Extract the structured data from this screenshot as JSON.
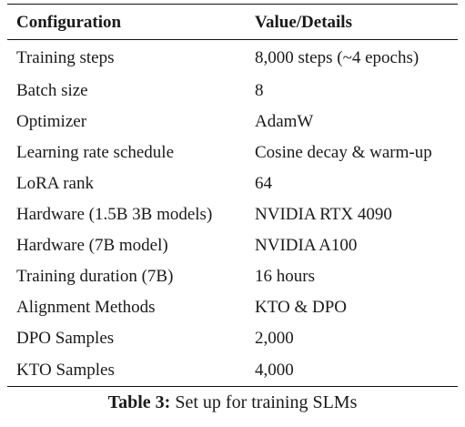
{
  "table": {
    "headers": [
      "Configuration",
      "Value/Details"
    ],
    "rows": [
      [
        "Training steps",
        "8,000 steps (~4 epochs)"
      ],
      [
        "Batch size",
        "8"
      ],
      [
        "Optimizer",
        "AdamW"
      ],
      [
        "Learning rate schedule",
        "Cosine decay & warm-up"
      ],
      [
        "LoRA rank",
        "64"
      ],
      [
        "Hardware (1.5B 3B models)",
        "NVIDIA RTX 4090"
      ],
      [
        "Hardware (7B model)",
        "NVIDIA A100"
      ],
      [
        "Training duration (7B)",
        "16 hours"
      ],
      [
        "Alignment Methods",
        "KTO & DPO"
      ],
      [
        "DPO Samples",
        "2,000"
      ],
      [
        "KTO Samples",
        "4,000"
      ]
    ]
  },
  "caption": {
    "label": "Table 3:",
    "text": " Set up for training SLMs"
  }
}
